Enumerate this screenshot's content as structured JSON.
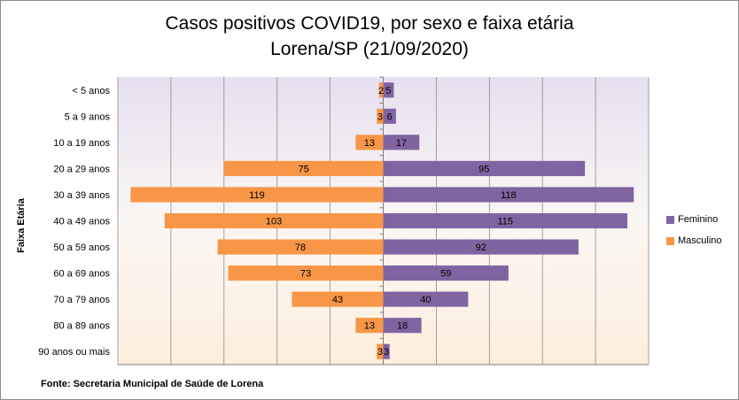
{
  "chart_data": {
    "type": "bar",
    "orientation": "horizontal",
    "title": "Casos positivos COVID19, por sexo e faixa etária",
    "subtitle": "Lorena/SP (21/09/2020)",
    "ylabel": "Faixa Etária",
    "xlabel": "",
    "categories": [
      "< 5 anos",
      "5 a 9 anos",
      "10 a 19 anos",
      "20 a 29 anos",
      "30 a 39 anos",
      "40 a 49 anos",
      "50 a 59 anos",
      "60 a 69 anos",
      "70 a 79 anos",
      "80 a 89 anos",
      "90 anos ou mais"
    ],
    "series": [
      {
        "name": "Feminino",
        "color": "#8064a2",
        "values": [
          5,
          6,
          17,
          95,
          118,
          115,
          92,
          59,
          40,
          18,
          3
        ]
      },
      {
        "name": "Masculino",
        "color": "#f79646",
        "values": [
          2,
          3,
          13,
          75,
          119,
          103,
          78,
          73,
          43,
          13,
          3
        ]
      }
    ],
    "xlim": [
      -125,
      125
    ],
    "grid": true,
    "legend_position": "right",
    "source": "Fonte: Secretaria Municipal  de Saúde de Lorena"
  }
}
